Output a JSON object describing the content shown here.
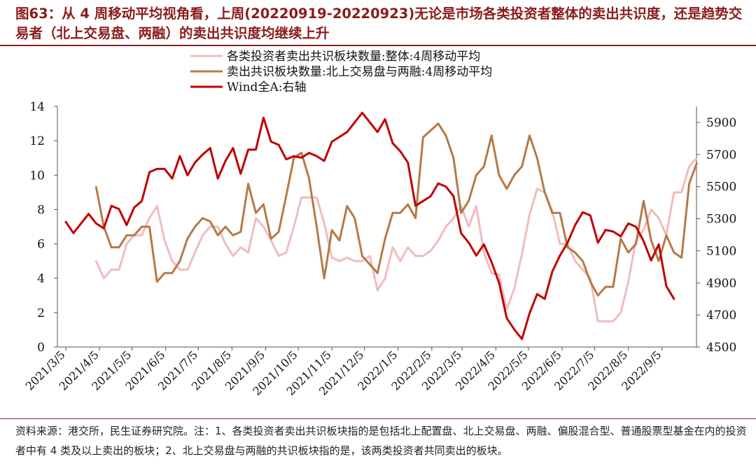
{
  "figure": {
    "title": "图63：从 4 周移动平均视角看，上周(20220919-20220923)无论是市场各类投资者整体的卖出共识度，还是趋势交易者（北上交易盘、两融）的卖出共识度均继续上升",
    "note": "资料来源：港交所，民生证券研究院。注：1、各类投资者卖出共识板块指的是包括北上配置盘、北上交易盘、两融、偏股混合型、普通股票型基金在内的投资者中有 4 类及以上卖出的板块；2、北上交易盘与两融的共识板块指的是，该两类投资者共同卖出的板块。"
  },
  "colors": {
    "overall": "#f0bcbc",
    "trend": "#b57a47",
    "wind": "#c00000",
    "title": "#8b1c1c"
  },
  "chart_data": {
    "type": "line",
    "title": "",
    "legend_placement": "top",
    "grid": false,
    "x_tick_labels": [
      "2021/3/5",
      "2021/4/5",
      "2021/5/5",
      "2021/6/5",
      "2021/7/5",
      "2021/8/5",
      "2021/9/5",
      "2021/10/5",
      "2021/11/5",
      "2021/12/5",
      "2022/1/5",
      "2022/2/5",
      "2022/3/5",
      "2022/4/5",
      "2022/5/5",
      "2022/6/5",
      "2022/7/5",
      "2022/8/5",
      "2022/9/5"
    ],
    "y_left": {
      "ylim": [
        0,
        14
      ],
      "ticks": [
        0,
        2,
        4,
        6,
        8,
        10,
        12,
        14
      ]
    },
    "y_right": {
      "ylim": [
        4500,
        6000
      ],
      "ticks": [
        4500,
        4700,
        4900,
        5100,
        5300,
        5500,
        5700,
        5900
      ]
    },
    "series": [
      {
        "name": "各类投资者卖出共识板块数量:整体:4周移动平均",
        "axis": "left",
        "color_key": "overall",
        "x_start": "2021/4/2",
        "values": [
          5.0,
          4.0,
          4.5,
          4.5,
          6.0,
          6.5,
          6.5,
          7.5,
          8.2,
          6.2,
          5.0,
          4.5,
          4.5,
          5.5,
          6.5,
          7.0,
          7.0,
          6.0,
          5.3,
          5.8,
          5.5,
          7.5,
          7.0,
          6.2,
          5.3,
          5.5,
          7.0,
          8.7,
          8.7,
          8.7,
          7.2,
          5.2,
          5.0,
          5.2,
          5.0,
          5.0,
          5.3,
          3.3,
          4.0,
          5.8,
          5.0,
          5.8,
          5.3,
          5.3,
          5.6,
          6.2,
          7.0,
          7.5,
          8.2,
          7.0,
          8.2,
          5.5,
          4.3,
          4.2,
          2.2,
          3.4,
          5.4,
          7.7,
          9.2,
          9.0,
          7.9,
          6.0,
          6.0,
          5.0,
          4.5,
          4.0,
          1.5,
          1.5,
          1.5,
          2.0,
          3.8,
          6.2,
          6.8,
          8.0,
          7.5,
          6.5,
          9.0,
          9.0,
          10.5,
          11.0
        ]
      },
      {
        "name": "卖出共识板块数量:北上交易盘与两融:4周移动平均",
        "axis": "left",
        "color_key": "trend",
        "x_start": "2021/4/2",
        "values": [
          9.3,
          7.0,
          5.8,
          5.8,
          6.5,
          6.5,
          7.0,
          7.0,
          3.8,
          4.3,
          4.3,
          5.0,
          6.3,
          7.0,
          7.5,
          7.3,
          6.5,
          7.0,
          6.5,
          6.7,
          9.5,
          7.8,
          8.3,
          6.3,
          6.7,
          8.8,
          11.0,
          11.3,
          9.8,
          7.0,
          4.0,
          6.8,
          6.2,
          8.2,
          7.5,
          5.3,
          4.8,
          4.3,
          6.3,
          7.8,
          7.8,
          8.3,
          7.5,
          12.2,
          12.6,
          13.0,
          12.3,
          11.0,
          7.8,
          8.5,
          10.0,
          10.5,
          12.3,
          10.0,
          9.2,
          10.0,
          10.5,
          12.3,
          11.0,
          9.0,
          7.8,
          7.8,
          5.8,
          5.5,
          5.0,
          3.8,
          3.0,
          3.5,
          3.5,
          6.3,
          5.5,
          6.0,
          8.5,
          6.2,
          5.0,
          6.5,
          5.5,
          5.2,
          9.5,
          10.7
        ]
      },
      {
        "name": "Wind全A:右轴",
        "axis": "right",
        "color_key": "wind",
        "x_start": "2021/3/5",
        "values": [
          5280,
          5210,
          5270,
          5330,
          5270,
          5240,
          5380,
          5360,
          5260,
          5370,
          5410,
          5590,
          5610,
          5610,
          5550,
          5690,
          5570,
          5650,
          5700,
          5740,
          5550,
          5660,
          5740,
          5580,
          5730,
          5730,
          5930,
          5780,
          5760,
          5670,
          5690,
          5680,
          5710,
          5690,
          5660,
          5780,
          5810,
          5840,
          5900,
          5960,
          5900,
          5840,
          5920,
          5770,
          5720,
          5650,
          5380,
          5410,
          5440,
          5520,
          5500,
          5440,
          5210,
          5150,
          5070,
          5140,
          5030,
          4900,
          4680,
          4610,
          4550,
          4710,
          4830,
          4800,
          4970,
          5070,
          5150,
          5260,
          5340,
          5320,
          5150,
          5230,
          5220,
          5190,
          5270,
          5250,
          5160,
          5040,
          5140,
          4880,
          4800
        ]
      }
    ]
  }
}
